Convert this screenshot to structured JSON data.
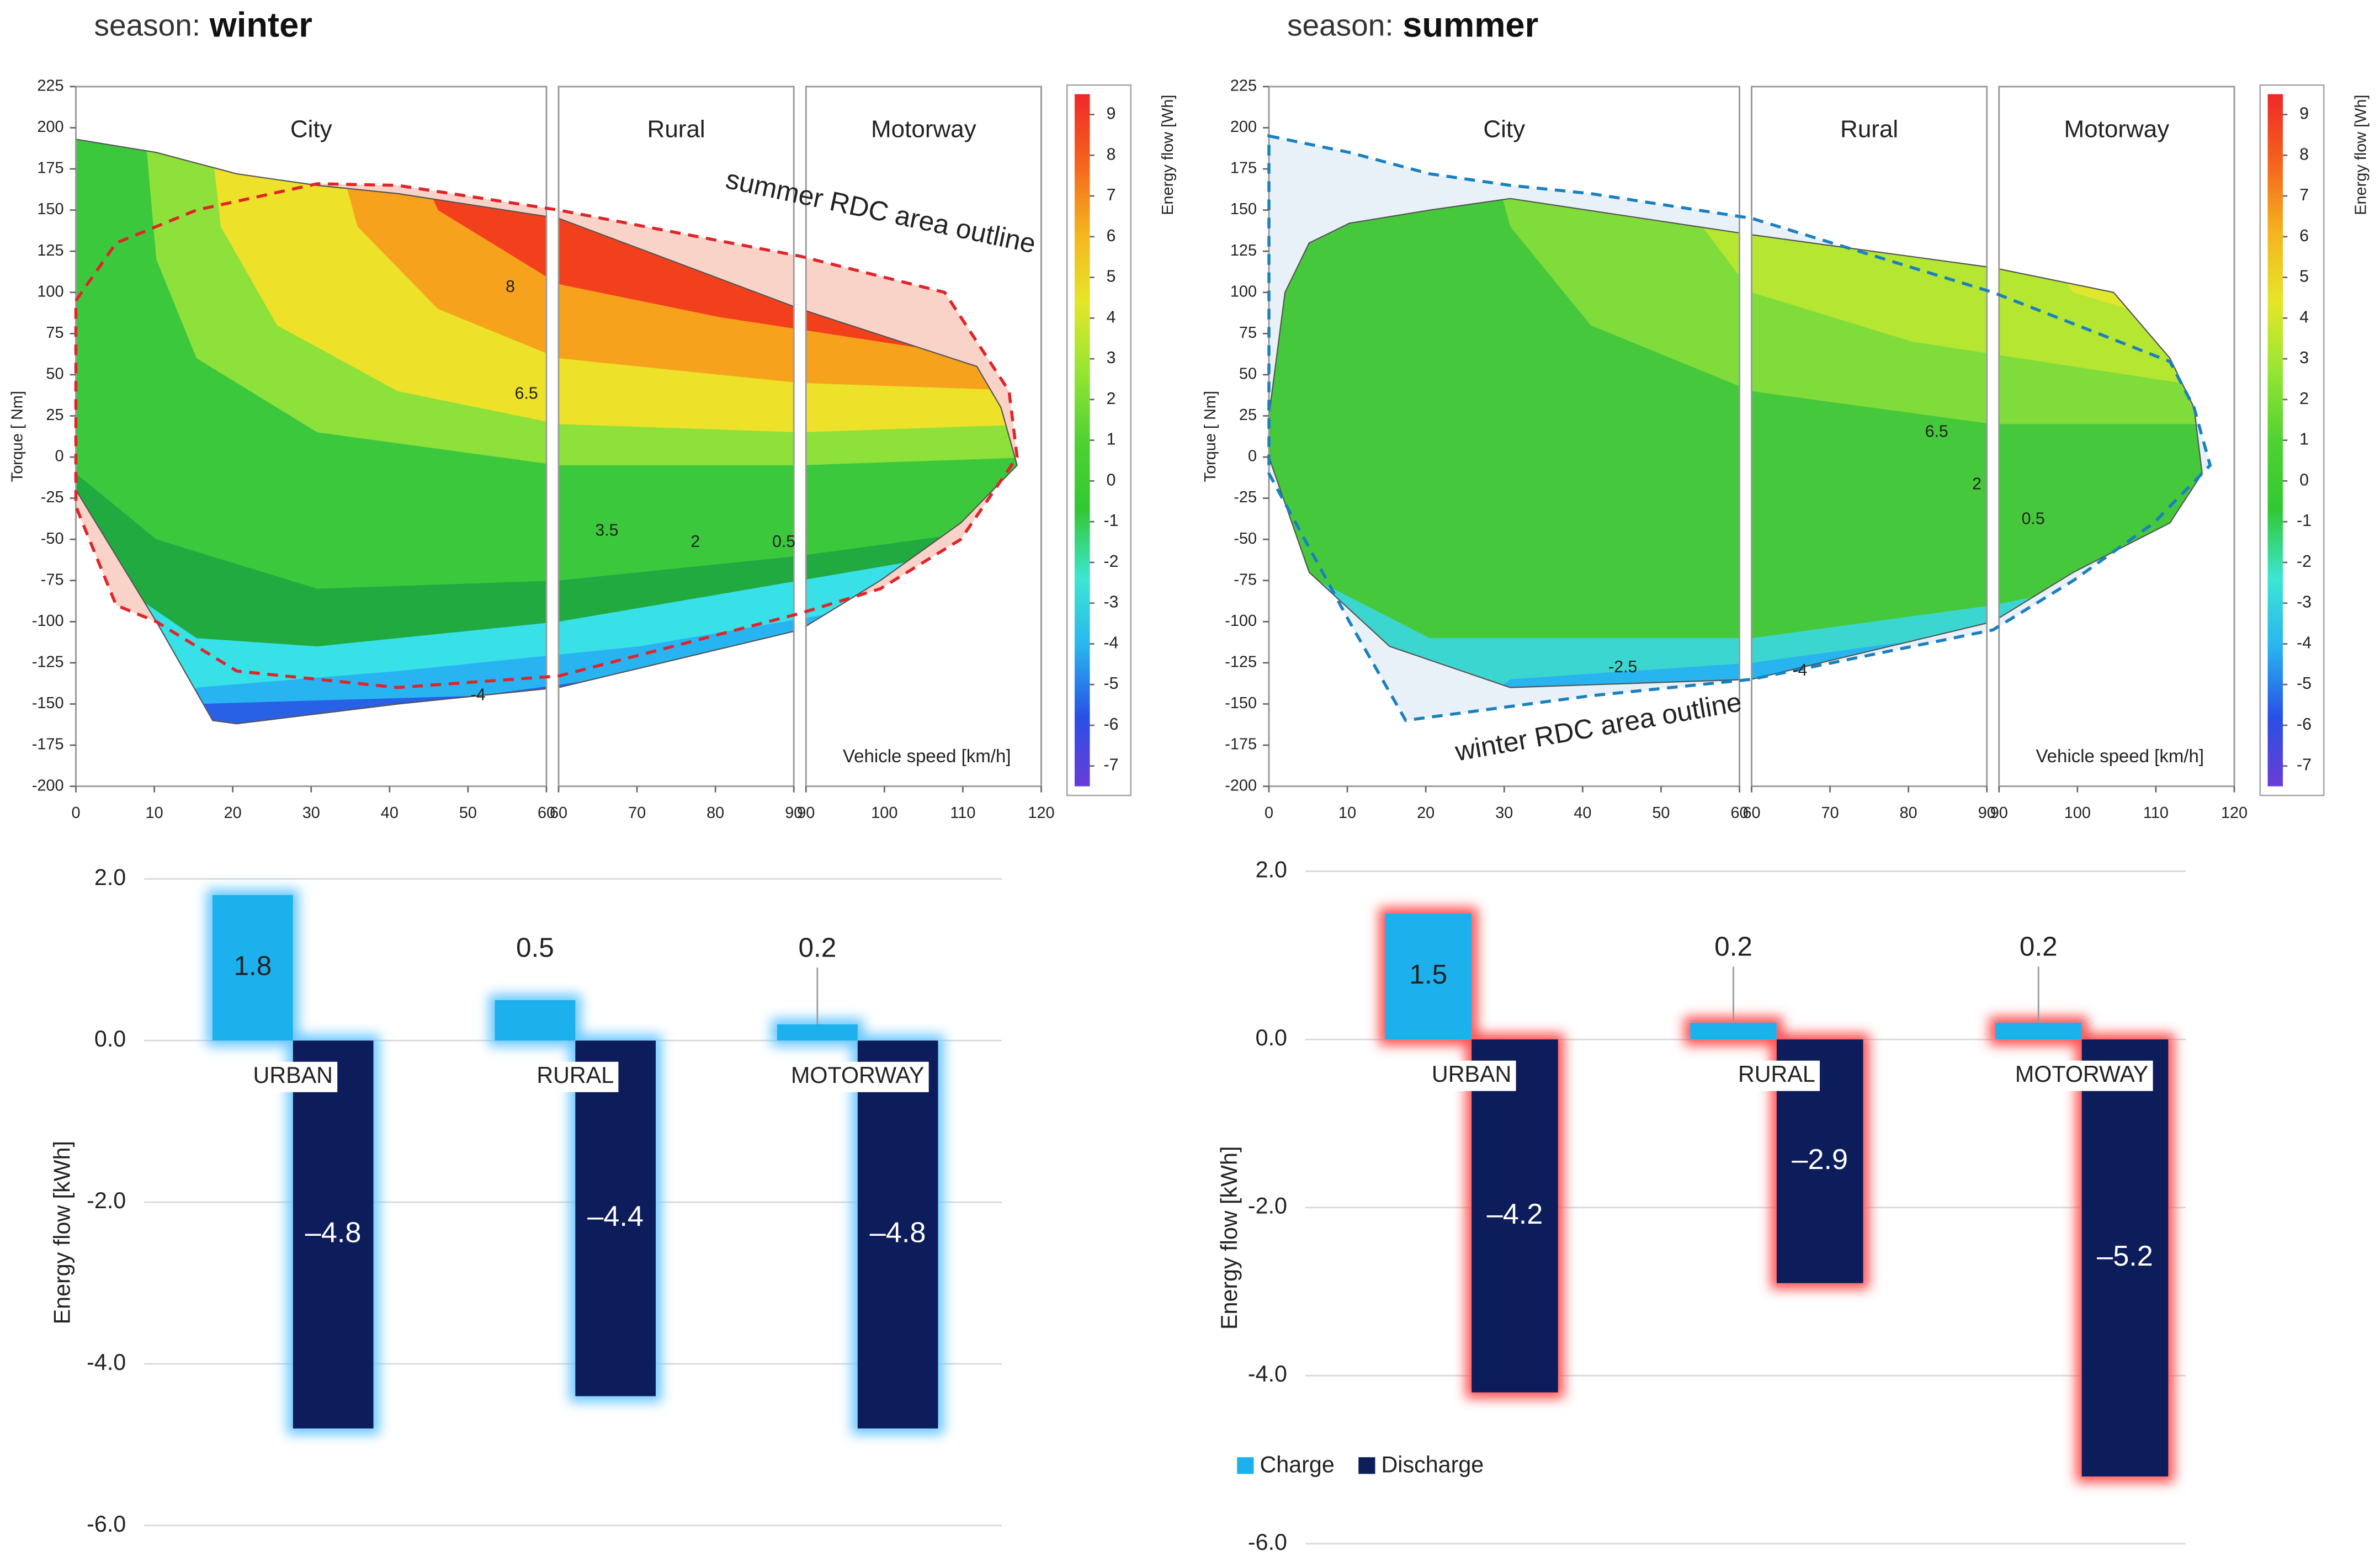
{
  "chart_data": [
    {
      "type": "contour",
      "season_label": "season:",
      "season": "winter",
      "xlabel": "Vehicle speed [km/h]",
      "ylabel": "Torque [ Nm]",
      "xlim": [
        0,
        120
      ],
      "ylim": [
        -200,
        225
      ],
      "yticks": [
        -200,
        -175,
        -150,
        -125,
        -100,
        -75,
        -50,
        -25,
        0,
        25,
        50,
        75,
        100,
        125,
        150,
        175,
        200,
        225
      ],
      "sections": [
        {
          "label": "City",
          "xlim": [
            0,
            60
          ],
          "xticks": [
            0,
            10,
            20,
            30,
            40,
            50,
            60
          ]
        },
        {
          "label": "Rural",
          "xlim": [
            60,
            90
          ],
          "xticks": [
            60,
            70,
            80,
            90
          ]
        },
        {
          "label": "Motorway",
          "xlim": [
            90,
            120
          ],
          "xticks": [
            90,
            100,
            110,
            120
          ]
        }
      ],
      "colorbar": {
        "label": "Energy flow [Wh]",
        "lim": [
          -7.5,
          9.5
        ],
        "ticks": [
          9,
          8,
          7,
          6,
          5,
          4,
          3,
          2,
          1,
          0,
          -1,
          -2,
          -3,
          -4,
          -5,
          -6,
          -7
        ],
        "colors": [
          "#6a3cd6",
          "#2850e6",
          "#28b4f0",
          "#3ce6d2",
          "#32c832",
          "#50d232",
          "#96e632",
          "#e6e628",
          "#f5b41e",
          "#f5641e",
          "#f02828"
        ]
      },
      "annotation": "summer RDC area outline",
      "outline_color": "#e0242a",
      "contour_labels": [
        "8",
        "6.5",
        "3.5",
        "2",
        "0.5",
        "-4"
      ]
    },
    {
      "type": "contour",
      "season_label": "season:",
      "season": "summer",
      "xlabel": "Vehicle speed [km/h]",
      "ylabel": "Torque [ Nm]",
      "xlim": [
        0,
        120
      ],
      "ylim": [
        -200,
        225
      ],
      "yticks": [
        -200,
        -175,
        -150,
        -125,
        -100,
        -75,
        -50,
        -25,
        0,
        25,
        50,
        75,
        100,
        125,
        150,
        175,
        200,
        225
      ],
      "sections": [
        {
          "label": "City",
          "xlim": [
            0,
            60
          ],
          "xticks": [
            0,
            10,
            20,
            30,
            40,
            50,
            60
          ]
        },
        {
          "label": "Rural",
          "xlim": [
            60,
            90
          ],
          "xticks": [
            60,
            70,
            80,
            90
          ]
        },
        {
          "label": "Motorway",
          "xlim": [
            90,
            120
          ],
          "xticks": [
            90,
            100,
            110,
            120
          ]
        }
      ],
      "colorbar": {
        "label": "Energy flow [Wh]",
        "lim": [
          -7.5,
          9.5
        ],
        "ticks": [
          9,
          8,
          7,
          6,
          5,
          4,
          3,
          2,
          1,
          0,
          -1,
          -2,
          -3,
          -4,
          -5,
          -6,
          -7
        ],
        "colors": [
          "#6a3cd6",
          "#2850e6",
          "#28b4f0",
          "#3ce6d2",
          "#32c832",
          "#50d232",
          "#96e632",
          "#e6e628",
          "#f5b41e",
          "#f5641e",
          "#f02828"
        ]
      },
      "annotation": "winter RDC area outline",
      "outline_color": "#1a80c0",
      "contour_labels": [
        "6.5",
        "2",
        "0.5",
        "-2.5",
        "-4"
      ]
    },
    {
      "type": "bar",
      "ylabel": "Energy flow [kWh]",
      "categories": [
        "URBAN",
        "RURAL",
        "MOTORWAY"
      ],
      "series": [
        {
          "name": "Charge",
          "color": "#1cb0ec",
          "values": [
            1.8,
            0.5,
            0.2
          ]
        },
        {
          "name": "Discharge",
          "color": "#0c1f5a",
          "values": [
            -4.8,
            -4.4,
            -4.8
          ],
          "value_labels": [
            "–4.8",
            "–4.4",
            "–4.8"
          ]
        }
      ],
      "ylim": [
        -6,
        2
      ],
      "yticks": [
        {
          "value": 2,
          "label": "2.0"
        },
        {
          "value": 0,
          "label": "0.0"
        },
        {
          "value": -2,
          "label": "-2.0"
        },
        {
          "value": -4,
          "label": "-4.0"
        },
        {
          "value": -6,
          "label": "-6.0"
        }
      ],
      "grid": true,
      "glow_color": "#6cc8ff",
      "legend": false
    },
    {
      "type": "bar",
      "ylabel": "Energy flow [kWh]",
      "categories": [
        "URBAN",
        "RURAL",
        "MOTORWAY"
      ],
      "series": [
        {
          "name": "Charge",
          "color": "#1cb0ec",
          "values": [
            1.5,
            0.2,
            0.2
          ]
        },
        {
          "name": "Discharge",
          "color": "#0c1f5a",
          "values": [
            -4.2,
            -2.9,
            -5.2
          ],
          "value_labels": [
            "–4.2",
            "–2.9",
            "–5.2"
          ]
        }
      ],
      "ylim": [
        -6,
        2
      ],
      "yticks": [
        {
          "value": 2,
          "label": "2.0"
        },
        {
          "value": 0,
          "label": "0.0"
        },
        {
          "value": -2,
          "label": "-2.0"
        },
        {
          "value": -4,
          "label": "-4.0"
        },
        {
          "value": -6,
          "label": "-6.0"
        }
      ],
      "grid": true,
      "glow_color": "#ff5050",
      "legend": true
    }
  ]
}
